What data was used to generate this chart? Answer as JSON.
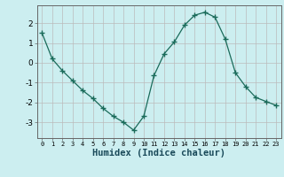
{
  "x": [
    0,
    1,
    2,
    3,
    4,
    5,
    6,
    7,
    8,
    9,
    10,
    11,
    12,
    13,
    14,
    15,
    16,
    17,
    18,
    19,
    20,
    21,
    22,
    23
  ],
  "y": [
    1.5,
    0.2,
    -0.4,
    -0.9,
    -1.4,
    -1.8,
    -2.3,
    -2.7,
    -3.0,
    -3.4,
    -2.7,
    -0.65,
    0.45,
    1.05,
    1.9,
    2.4,
    2.55,
    2.3,
    1.2,
    -0.5,
    -1.2,
    -1.75,
    -1.95,
    -2.15
  ],
  "xlabel": "Humidex (Indice chaleur)",
  "bg_color": "#cceef0",
  "grid_color": "#bbbbbb",
  "line_color": "#1a6b5a",
  "marker": "+",
  "xlim": [
    -0.5,
    23.5
  ],
  "ylim": [
    -3.8,
    2.9
  ],
  "yticks": [
    -3,
    -2,
    -1,
    0,
    1,
    2
  ],
  "xticks": [
    0,
    1,
    2,
    3,
    4,
    5,
    6,
    7,
    8,
    9,
    10,
    11,
    12,
    13,
    14,
    15,
    16,
    17,
    18,
    19,
    20,
    21,
    22,
    23
  ],
  "xtick_labels": [
    "0",
    "1",
    "2",
    "3",
    "4",
    "5",
    "6",
    "7",
    "8",
    "9",
    "10",
    "11",
    "12",
    "13",
    "14",
    "15",
    "16",
    "17",
    "18",
    "19",
    "20",
    "21",
    "22",
    "23"
  ]
}
